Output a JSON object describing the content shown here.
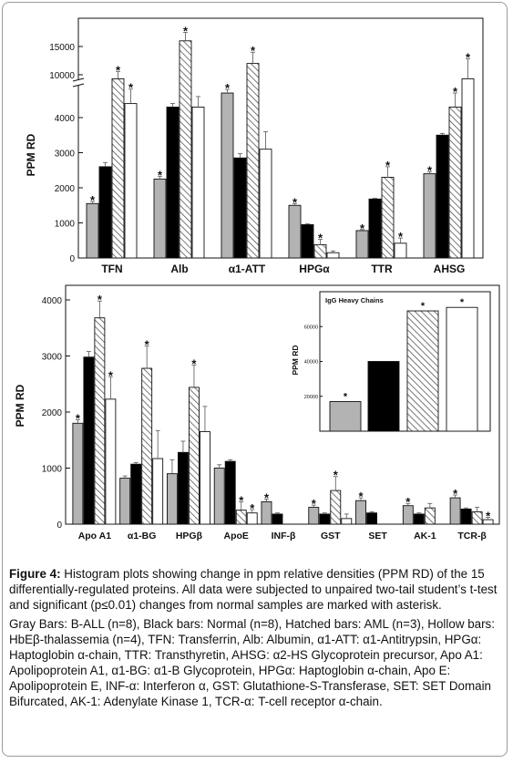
{
  "figure_label": "Figure 4:",
  "figure_caption": "Histogram plots showing change in ppm relative densities (PPM RD) of the 15 differentially-regulated proteins.  All data were subjected to unpaired two-tail student’s t-test and significant (p≤0.01) changes from normal samples are marked with asterisk.",
  "legend_text": "Gray Bars: B-ALL (n=8), Black bars: Normal (n=8), Hatched bars: AML (n=3), Hollow bars: HbEβ-thalassemia (n=4), TFN: Transferrin, Alb: Albumin, α1-ATT: α1-Antitrypsin, HPGα: Haptoglobin α-chain, TTR: Transthyretin, AHSG: α2-HS Glycoprotein precursor, Apo A1: Apolipoprotein A1, α1-BG: α1-B Glycoprotein, HPGα: Haptoglobin α-chain, Apo E: Apolipoprotein E, INF-α: Interferon α, GST: Glutathione-S-Transferase, SET: SET Domain Bifurcated, AK-1: Adenylate Kinase 1, TCR-α: T-cell receptor α-chain.",
  "colors": {
    "b_all": "#b3b3b3",
    "normal": "#000000",
    "aml": "#ffffff",
    "hbe": "#ffffff",
    "hatch": "#555555"
  },
  "chart_data": [
    {
      "type": "bar",
      "ylabel": "PPM RD",
      "axis_break": true,
      "yticks_lower": [
        0,
        1000,
        2000,
        3000,
        4000
      ],
      "yticks_upper": [
        10000,
        15000
      ],
      "categories": [
        "TFN",
        "Alb",
        "α1-ATT",
        "HPGα",
        "TTR",
        "AHSG"
      ],
      "series": [
        {
          "key": "b_all",
          "values": [
            1550,
            2250,
            4700,
            1500,
            780,
            2400
          ],
          "errors": [
            60,
            80,
            150,
            50,
            30,
            60
          ]
        },
        {
          "key": "normal",
          "values": [
            2600,
            4300,
            2850,
            950,
            1680,
            3500
          ],
          "errors": [
            120,
            100,
            120,
            20,
            20,
            50
          ]
        },
        {
          "key": "aml",
          "values": [
            9800,
            16000,
            12000,
            380,
            2300,
            4300
          ],
          "errors": [
            800,
            1500,
            2000,
            150,
            300,
            400
          ]
        },
        {
          "key": "hbe",
          "values": [
            4400,
            4300,
            3100,
            150,
            420,
            9800
          ],
          "errors": [
            600,
            300,
            500,
            50,
            150,
            3000
          ]
        }
      ],
      "significant": [
        [
          true,
          true,
          true,
          true,
          true,
          true
        ],
        [
          false,
          false,
          false,
          false,
          false,
          false
        ],
        [
          true,
          true,
          true,
          true,
          true,
          true
        ],
        [
          true,
          false,
          false,
          false,
          true,
          true
        ]
      ]
    },
    {
      "type": "bar",
      "ylabel": "PPM RD",
      "yticks": [
        0,
        1000,
        2000,
        3000,
        4000
      ],
      "categories": [
        "Apo A1",
        "α1-BG",
        "HPGβ",
        "ApoE",
        "INF-β",
        "GST",
        "SET",
        "AK-1",
        "TCR-β"
      ],
      "series": [
        {
          "key": "b_all",
          "values": [
            1800,
            820,
            900,
            1000,
            400,
            300,
            420,
            330,
            470
          ],
          "errors": [
            60,
            40,
            250,
            60,
            50,
            40,
            50,
            40,
            50
          ]
        },
        {
          "key": "normal",
          "values": [
            2980,
            1070,
            1280,
            1120,
            180,
            180,
            200,
            180,
            270
          ],
          "errors": [
            100,
            30,
            200,
            30,
            20,
            20,
            20,
            20,
            20
          ]
        },
        {
          "key": "aml",
          "values": [
            3680,
            2780,
            2440,
            250,
            0,
            600,
            0,
            290,
            220
          ],
          "errors": [
            300,
            400,
            400,
            150,
            0,
            250,
            0,
            80,
            80
          ]
        },
        {
          "key": "hbe",
          "values": [
            2230,
            1170,
            1650,
            200,
            0,
            100,
            0,
            0,
            80
          ],
          "errors": [
            400,
            500,
            450,
            60,
            0,
            80,
            0,
            0,
            40
          ]
        }
      ],
      "significant": [
        [
          true,
          false,
          false,
          false,
          true,
          true,
          true,
          true,
          true
        ],
        [
          false,
          false,
          false,
          false,
          false,
          false,
          false,
          false,
          false
        ],
        [
          true,
          true,
          true,
          true,
          false,
          true,
          false,
          false,
          false
        ],
        [
          true,
          false,
          false,
          true,
          false,
          false,
          false,
          false,
          true
        ]
      ]
    },
    {
      "type": "bar",
      "title": "IgG Heavy Chains",
      "ylabel": "PPM RD",
      "yticks": [
        20000,
        40000,
        60000
      ],
      "ylim": [
        0,
        80000
      ],
      "series": [
        {
          "key": "b_all",
          "value": 17000,
          "significant": true
        },
        {
          "key": "normal",
          "value": 40000,
          "significant": false
        },
        {
          "key": "aml",
          "value": 69000,
          "significant": true
        },
        {
          "key": "hbe",
          "value": 71000,
          "significant": true
        }
      ]
    }
  ]
}
